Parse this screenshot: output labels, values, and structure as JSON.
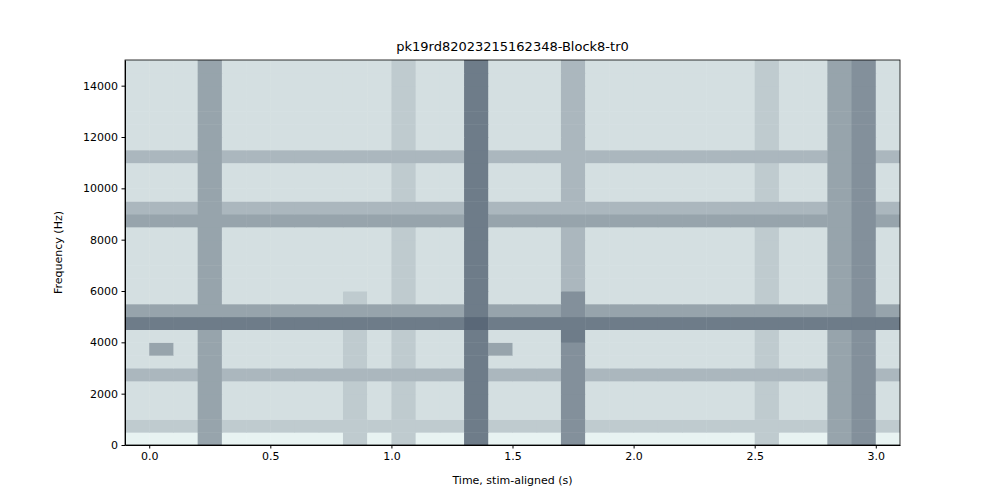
{
  "chart_data": {
    "type": "heatmap",
    "title": "pk19rd82023215162348-Block8-tr0",
    "x_label": "Time, stim-aligned (s)",
    "y_label": "Frequency (Hz)",
    "x": [
      -0.05,
      0.05,
      0.15,
      0.25,
      0.35,
      0.45,
      0.55,
      0.65,
      0.75,
      0.85,
      0.95,
      1.05,
      1.15,
      1.25,
      1.35,
      1.45,
      1.55,
      1.65,
      1.75,
      1.85,
      1.95,
      2.05,
      2.15,
      2.25,
      2.35,
      2.45,
      2.55,
      2.65,
      2.75,
      2.85,
      2.95,
      3.05
    ],
    "y": [
      250,
      750,
      1250,
      1750,
      2250,
      2750,
      3250,
      3750,
      4250,
      4750,
      5250,
      5750,
      6250,
      6750,
      7250,
      7750,
      8250,
      8750,
      9250,
      9750,
      10250,
      10750,
      11250,
      11750,
      12250,
      12750,
      13250,
      13750,
      14250,
      14750
    ],
    "values": [
      [
        2,
        2,
        2,
        6,
        2,
        2,
        2,
        2,
        2,
        4,
        2,
        4,
        2,
        2,
        8,
        2,
        2,
        2,
        7,
        2,
        2,
        2,
        2,
        2,
        2,
        2,
        4,
        2,
        2,
        6,
        7,
        2
      ],
      [
        4,
        4,
        4,
        6,
        4,
        4,
        4,
        4,
        4,
        4,
        4,
        4,
        4,
        4,
        8,
        4,
        4,
        4,
        7,
        4,
        4,
        4,
        4,
        4,
        4,
        4,
        4,
        4,
        4,
        6,
        7,
        4
      ],
      [
        3,
        3,
        3,
        6,
        3,
        3,
        3,
        3,
        3,
        4,
        3,
        4,
        3,
        3,
        8,
        3,
        3,
        3,
        7,
        3,
        3,
        3,
        3,
        3,
        3,
        3,
        4,
        3,
        3,
        6,
        7,
        3
      ],
      [
        3,
        3,
        3,
        6,
        3,
        3,
        3,
        3,
        3,
        4,
        3,
        4,
        3,
        3,
        8,
        3,
        3,
        3,
        7,
        3,
        3,
        3,
        3,
        3,
        3,
        3,
        4,
        3,
        3,
        6,
        7,
        3
      ],
      [
        3,
        3,
        3,
        6,
        3,
        3,
        3,
        3,
        3,
        4,
        3,
        4,
        3,
        3,
        8,
        3,
        3,
        3,
        7,
        3,
        3,
        3,
        3,
        3,
        3,
        3,
        4,
        3,
        3,
        6,
        7,
        3
      ],
      [
        5,
        5,
        5,
        6,
        5,
        5,
        5,
        5,
        5,
        5,
        5,
        5,
        5,
        5,
        8,
        5,
        5,
        5,
        7,
        5,
        5,
        5,
        5,
        5,
        5,
        5,
        5,
        5,
        5,
        6,
        7,
        5
      ],
      [
        3,
        3,
        3,
        6,
        3,
        3,
        3,
        3,
        3,
        4,
        3,
        4,
        3,
        3,
        8,
        3,
        3,
        3,
        7,
        3,
        3,
        3,
        3,
        3,
        3,
        3,
        4,
        3,
        3,
        6,
        7,
        3
      ],
      [
        3,
        6,
        3,
        6,
        3,
        3,
        3,
        3,
        3,
        4,
        3,
        4,
        3,
        3,
        8,
        6,
        3,
        3,
        7,
        3,
        3,
        3,
        3,
        3,
        3,
        3,
        4,
        3,
        3,
        6,
        7,
        3
      ],
      [
        3,
        3,
        3,
        6,
        3,
        3,
        3,
        3,
        3,
        4,
        3,
        4,
        3,
        3,
        8,
        3,
        3,
        3,
        8,
        3,
        3,
        3,
        3,
        3,
        3,
        3,
        4,
        3,
        3,
        6,
        7,
        3
      ],
      [
        8,
        8,
        8,
        8,
        8,
        8,
        8,
        8,
        8,
        8,
        8,
        8,
        8,
        8,
        9,
        8,
        8,
        8,
        8,
        8,
        8,
        8,
        8,
        8,
        8,
        8,
        8,
        8,
        8,
        8,
        8,
        8
      ],
      [
        6,
        6,
        6,
        6,
        6,
        6,
        6,
        6,
        6,
        6,
        6,
        6,
        6,
        6,
        8,
        6,
        6,
        6,
        7,
        6,
        6,
        6,
        6,
        6,
        6,
        6,
        6,
        6,
        6,
        6,
        7,
        6
      ],
      [
        3,
        3,
        3,
        6,
        3,
        3,
        3,
        3,
        3,
        4,
        3,
        4,
        3,
        3,
        8,
        3,
        3,
        3,
        7,
        3,
        3,
        3,
        3,
        3,
        3,
        3,
        4,
        3,
        3,
        6,
        7,
        3
      ],
      [
        3,
        3,
        3,
        6,
        3,
        3,
        3,
        3,
        3,
        3,
        3,
        4,
        3,
        3,
        8,
        3,
        3,
        3,
        5,
        3,
        3,
        3,
        3,
        3,
        3,
        3,
        4,
        3,
        3,
        6,
        7,
        3
      ],
      [
        3,
        3,
        3,
        6,
        3,
        3,
        3,
        3,
        3,
        3,
        3,
        4,
        3,
        3,
        8,
        3,
        3,
        3,
        5,
        3,
        3,
        3,
        3,
        3,
        3,
        3,
        4,
        3,
        3,
        6,
        7,
        3
      ],
      [
        3,
        3,
        3,
        6,
        3,
        3,
        3,
        3,
        3,
        3,
        3,
        4,
        3,
        3,
        8,
        3,
        3,
        3,
        5,
        3,
        3,
        3,
        3,
        3,
        3,
        3,
        4,
        3,
        3,
        6,
        7,
        3
      ],
      [
        3,
        3,
        3,
        6,
        3,
        3,
        3,
        3,
        3,
        3,
        3,
        4,
        3,
        3,
        8,
        3,
        3,
        3,
        5,
        3,
        3,
        3,
        3,
        3,
        3,
        3,
        4,
        3,
        3,
        6,
        7,
        3
      ],
      [
        3,
        3,
        3,
        6,
        3,
        3,
        3,
        3,
        3,
        3,
        3,
        4,
        3,
        3,
        8,
        3,
        3,
        3,
        5,
        3,
        3,
        3,
        3,
        3,
        3,
        3,
        4,
        3,
        3,
        6,
        7,
        3
      ],
      [
        6,
        6,
        6,
        6,
        6,
        6,
        6,
        6,
        6,
        6,
        6,
        6,
        6,
        6,
        8,
        6,
        6,
        6,
        6,
        6,
        6,
        6,
        6,
        6,
        6,
        6,
        6,
        6,
        6,
        6,
        7,
        6
      ],
      [
        5,
        5,
        5,
        6,
        5,
        5,
        5,
        5,
        5,
        5,
        5,
        5,
        5,
        5,
        8,
        5,
        5,
        5,
        5,
        5,
        5,
        5,
        5,
        5,
        5,
        5,
        5,
        5,
        5,
        6,
        7,
        5
      ],
      [
        3,
        3,
        3,
        6,
        3,
        3,
        3,
        3,
        3,
        3,
        3,
        4,
        3,
        3,
        8,
        3,
        3,
        3,
        5,
        3,
        3,
        3,
        3,
        3,
        3,
        3,
        4,
        3,
        3,
        6,
        7,
        3
      ],
      [
        3,
        3,
        3,
        6,
        3,
        3,
        3,
        3,
        3,
        3,
        3,
        4,
        3,
        3,
        8,
        3,
        3,
        3,
        5,
        3,
        3,
        3,
        3,
        3,
        3,
        3,
        4,
        3,
        3,
        6,
        7,
        3
      ],
      [
        3,
        3,
        3,
        6,
        3,
        3,
        3,
        3,
        3,
        3,
        3,
        4,
        3,
        3,
        8,
        3,
        3,
        3,
        5,
        3,
        3,
        3,
        3,
        3,
        3,
        3,
        4,
        3,
        3,
        6,
        7,
        3
      ],
      [
        5,
        5,
        5,
        6,
        5,
        5,
        5,
        5,
        5,
        5,
        5,
        5,
        5,
        5,
        8,
        5,
        5,
        5,
        5,
        5,
        5,
        5,
        5,
        5,
        5,
        5,
        5,
        5,
        5,
        6,
        7,
        5
      ],
      [
        3,
        3,
        3,
        6,
        3,
        3,
        3,
        3,
        3,
        3,
        3,
        4,
        3,
        3,
        8,
        3,
        3,
        3,
        5,
        3,
        3,
        3,
        3,
        3,
        3,
        3,
        4,
        3,
        3,
        6,
        7,
        3
      ],
      [
        3,
        3,
        3,
        6,
        3,
        3,
        3,
        3,
        3,
        3,
        3,
        4,
        3,
        3,
        8,
        3,
        3,
        3,
        5,
        3,
        3,
        3,
        3,
        3,
        3,
        3,
        4,
        3,
        3,
        6,
        7,
        3
      ],
      [
        3,
        3,
        3,
        6,
        3,
        3,
        3,
        3,
        3,
        3,
        3,
        4,
        3,
        3,
        8,
        3,
        3,
        3,
        5,
        3,
        3,
        3,
        3,
        3,
        3,
        3,
        4,
        3,
        3,
        6,
        7,
        3
      ],
      [
        3,
        3,
        3,
        6,
        3,
        3,
        3,
        3,
        3,
        3,
        3,
        4,
        3,
        3,
        8,
        3,
        3,
        3,
        5,
        3,
        3,
        3,
        3,
        3,
        3,
        3,
        4,
        3,
        3,
        6,
        7,
        3
      ],
      [
        3,
        3,
        3,
        6,
        3,
        3,
        3,
        3,
        3,
        3,
        3,
        4,
        3,
        3,
        8,
        3,
        3,
        3,
        5,
        3,
        3,
        3,
        3,
        3,
        3,
        3,
        4,
        3,
        3,
        6,
        7,
        3
      ],
      [
        3,
        3,
        3,
        6,
        3,
        3,
        3,
        3,
        3,
        3,
        3,
        4,
        3,
        3,
        8,
        3,
        3,
        3,
        5,
        3,
        3,
        3,
        3,
        3,
        3,
        3,
        4,
        3,
        3,
        6,
        7,
        3
      ],
      [
        3,
        3,
        3,
        6,
        3,
        3,
        3,
        3,
        3,
        3,
        3,
        4,
        3,
        3,
        8,
        3,
        3,
        3,
        5,
        3,
        3,
        3,
        3,
        3,
        3,
        3,
        4,
        3,
        3,
        6,
        7,
        3
      ]
    ],
    "xlim": [
      -0.1,
      3.1
    ],
    "ylim": [
      0,
      15000
    ],
    "xticks": [
      {
        "value": 0,
        "label": "0.0"
      },
      0.5,
      {
        "value": 1,
        "label": "1.0"
      },
      1.5,
      {
        "value": 2,
        "label": "2.0"
      },
      2.5,
      {
        "value": 3,
        "label": "3.0"
      }
    ],
    "yticks": [
      0,
      2000,
      4000,
      6000,
      8000,
      10000,
      12000,
      14000
    ]
  }
}
